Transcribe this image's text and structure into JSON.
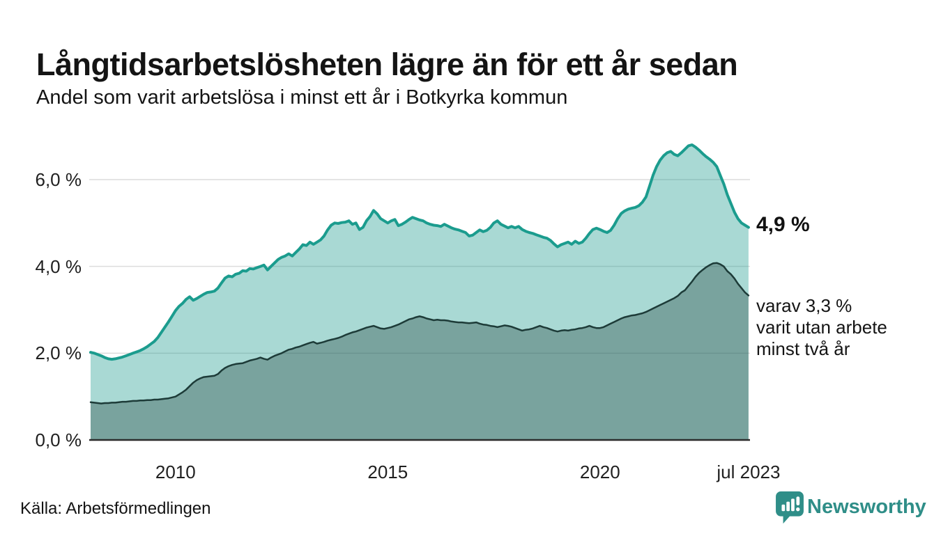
{
  "header": {
    "title": "Långtidsarbetslösheten lägre än för ett år sedan",
    "subtitle": "Andel som varit arbetslösa i minst ett år i Botkyrka kommun"
  },
  "footer": {
    "source": "Källa: Arbetsförmedlingen",
    "brand": "Newsworthy"
  },
  "colors": {
    "teal_line": "#1b9c8e",
    "teal_fill": "rgba(30,156,142,0.38)",
    "dark_line": "#1d3b38",
    "dark_fill": "rgba(29,59,56,0.34)",
    "gridline": "#dcdcdc",
    "axis": "#2b2b2b",
    "text": "#141414",
    "brand_teal": "#2f8e88"
  },
  "chart_data": {
    "type": "area",
    "title": "Långtidsarbetslösheten lägre än för ett år sedan",
    "subtitle": "Andel som varit arbetslösa i minst ett år i Botkyrka kommun",
    "unit": "%",
    "x_start_year": 2008.0,
    "x_end_year": 2023.5,
    "x_step": "monthly",
    "ylim": [
      0,
      7.2
    ],
    "grid": "horizontal",
    "legend": "none",
    "yticks": [
      {
        "value": 0,
        "label": "0,0 %"
      },
      {
        "value": 2,
        "label": "2,0 %"
      },
      {
        "value": 4,
        "label": "4,0 %"
      },
      {
        "value": 6,
        "label": "6,0 %"
      }
    ],
    "xticks": [
      {
        "year": 2010,
        "label": "2010"
      },
      {
        "year": 2015,
        "label": "2015"
      },
      {
        "year": 2020,
        "label": "2020"
      },
      {
        "year": 2023.5,
        "label": "jul 2023"
      }
    ],
    "end_labels": {
      "primary": "4,9 %",
      "secondary_lines": [
        "varav 3,3 %",
        "varit utan arbete",
        "minst två år"
      ]
    },
    "series": [
      {
        "name": "Arbetslösa minst ett år",
        "line_color": "#1b9c8e",
        "fill_color": "rgba(30,156,142,0.38)",
        "line_width": 4,
        "last_value": 4.9,
        "values": [
          2.02,
          2.0,
          1.97,
          1.94,
          1.9,
          1.87,
          1.86,
          1.87,
          1.89,
          1.91,
          1.94,
          1.97,
          2.0,
          2.03,
          2.06,
          2.1,
          2.15,
          2.21,
          2.27,
          2.36,
          2.48,
          2.6,
          2.72,
          2.85,
          2.98,
          3.08,
          3.15,
          3.24,
          3.3,
          3.22,
          3.26,
          3.31,
          3.36,
          3.4,
          3.41,
          3.43,
          3.5,
          3.62,
          3.73,
          3.78,
          3.76,
          3.82,
          3.84,
          3.9,
          3.89,
          3.95,
          3.94,
          3.97,
          4.0,
          4.03,
          3.92,
          4.0,
          4.08,
          4.16,
          4.21,
          4.24,
          4.29,
          4.24,
          4.32,
          4.4,
          4.5,
          4.48,
          4.56,
          4.51,
          4.56,
          4.61,
          4.7,
          4.84,
          4.95,
          5.0,
          4.99,
          5.01,
          5.02,
          5.05,
          4.97,
          5.0,
          4.85,
          4.9,
          5.05,
          5.15,
          5.29,
          5.21,
          5.1,
          5.05,
          5.0,
          5.05,
          5.08,
          4.94,
          4.97,
          5.02,
          5.08,
          5.13,
          5.1,
          5.07,
          5.05,
          5.0,
          4.97,
          4.95,
          4.94,
          4.92,
          4.97,
          4.93,
          4.89,
          4.86,
          4.84,
          4.81,
          4.78,
          4.7,
          4.72,
          4.78,
          4.84,
          4.8,
          4.83,
          4.9,
          5.0,
          5.05,
          4.97,
          4.93,
          4.89,
          4.92,
          4.89,
          4.92,
          4.85,
          4.81,
          4.78,
          4.76,
          4.73,
          4.7,
          4.67,
          4.65,
          4.6,
          4.52,
          4.45,
          4.5,
          4.53,
          4.56,
          4.51,
          4.58,
          4.53,
          4.56,
          4.65,
          4.76,
          4.85,
          4.88,
          4.85,
          4.81,
          4.78,
          4.83,
          4.95,
          5.1,
          5.22,
          5.28,
          5.32,
          5.34,
          5.36,
          5.4,
          5.48,
          5.6,
          5.85,
          6.1,
          6.3,
          6.45,
          6.55,
          6.62,
          6.65,
          6.58,
          6.55,
          6.62,
          6.7,
          6.78,
          6.8,
          6.75,
          6.68,
          6.6,
          6.53,
          6.47,
          6.4,
          6.3,
          6.1,
          5.9,
          5.65,
          5.45,
          5.25,
          5.1,
          5.0,
          4.95,
          4.9
        ]
      },
      {
        "name": "Arbetslösa minst två år",
        "line_color": "#1d3b38",
        "fill_color": "rgba(29,59,56,0.34)",
        "line_width": 2.5,
        "last_value": 3.3,
        "values": [
          0.87,
          0.86,
          0.85,
          0.84,
          0.85,
          0.85,
          0.86,
          0.86,
          0.87,
          0.88,
          0.88,
          0.89,
          0.9,
          0.9,
          0.91,
          0.91,
          0.92,
          0.92,
          0.93,
          0.93,
          0.94,
          0.95,
          0.96,
          0.98,
          1.0,
          1.05,
          1.1,
          1.16,
          1.24,
          1.32,
          1.38,
          1.42,
          1.45,
          1.46,
          1.47,
          1.48,
          1.52,
          1.6,
          1.66,
          1.7,
          1.73,
          1.75,
          1.76,
          1.77,
          1.8,
          1.83,
          1.85,
          1.87,
          1.9,
          1.87,
          1.85,
          1.9,
          1.94,
          1.97,
          2.0,
          2.04,
          2.08,
          2.1,
          2.13,
          2.15,
          2.18,
          2.21,
          2.24,
          2.26,
          2.22,
          2.24,
          2.26,
          2.29,
          2.31,
          2.33,
          2.35,
          2.38,
          2.42,
          2.45,
          2.48,
          2.5,
          2.53,
          2.56,
          2.59,
          2.61,
          2.63,
          2.6,
          2.57,
          2.56,
          2.58,
          2.6,
          2.63,
          2.66,
          2.7,
          2.74,
          2.78,
          2.8,
          2.83,
          2.85,
          2.83,
          2.8,
          2.78,
          2.76,
          2.77,
          2.76,
          2.76,
          2.75,
          2.73,
          2.72,
          2.71,
          2.71,
          2.7,
          2.69,
          2.7,
          2.71,
          2.68,
          2.66,
          2.65,
          2.63,
          2.62,
          2.6,
          2.62,
          2.64,
          2.63,
          2.61,
          2.58,
          2.55,
          2.52,
          2.54,
          2.55,
          2.57,
          2.6,
          2.63,
          2.6,
          2.58,
          2.55,
          2.52,
          2.5,
          2.52,
          2.53,
          2.52,
          2.54,
          2.55,
          2.57,
          2.58,
          2.6,
          2.63,
          2.6,
          2.58,
          2.58,
          2.6,
          2.64,
          2.68,
          2.72,
          2.76,
          2.8,
          2.83,
          2.85,
          2.87,
          2.88,
          2.9,
          2.92,
          2.95,
          2.99,
          3.03,
          3.07,
          3.11,
          3.15,
          3.19,
          3.23,
          3.27,
          3.32,
          3.4,
          3.45,
          3.55,
          3.65,
          3.76,
          3.85,
          3.92,
          3.98,
          4.03,
          4.07,
          4.08,
          4.05,
          4.0,
          3.89,
          3.82,
          3.72,
          3.6,
          3.5,
          3.4,
          3.33
        ]
      }
    ]
  }
}
